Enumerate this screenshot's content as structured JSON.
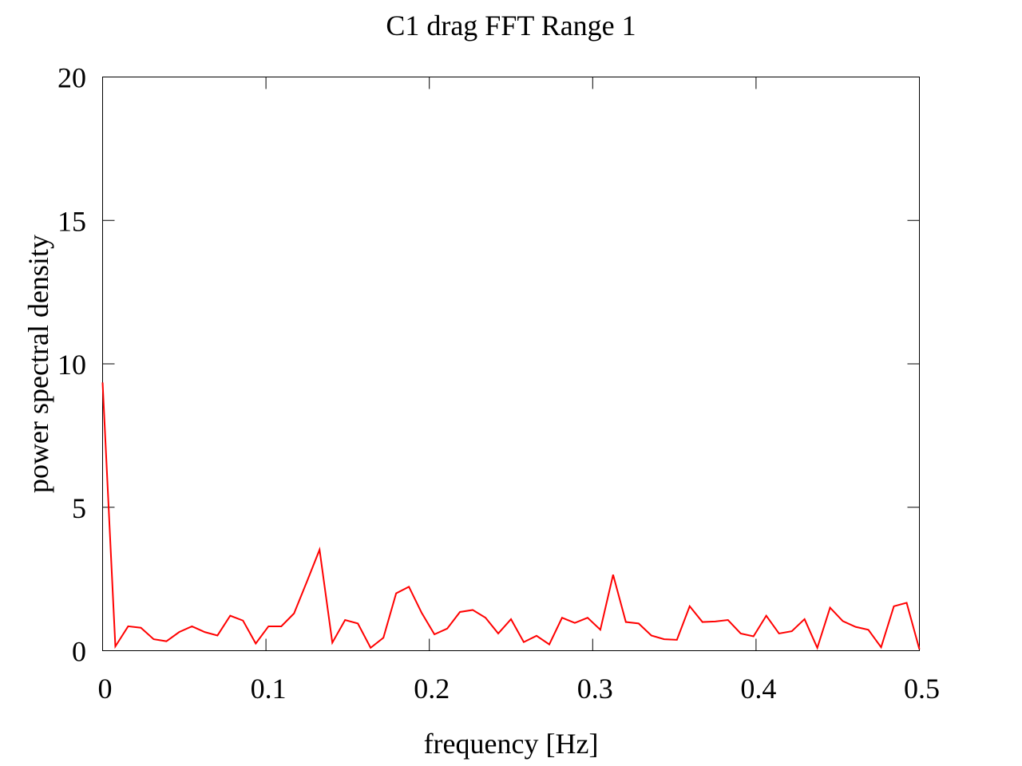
{
  "chart_data": {
    "type": "line",
    "title": "C1 drag FFT Range 1",
    "xlabel": "frequency [Hz]",
    "ylabel": "power spectral density",
    "xlim": [
      0,
      0.5
    ],
    "ylim": [
      0,
      20
    ],
    "xticks": [
      0,
      0.1,
      0.2,
      0.3,
      0.4,
      0.5
    ],
    "xtick_labels": [
      "0",
      "0.1",
      "0.2",
      "0.3",
      "0.4",
      "0.5"
    ],
    "yticks": [
      0,
      5,
      10,
      15,
      20
    ],
    "ytick_labels": [
      "0",
      "5",
      "10",
      "15",
      "20"
    ],
    "grid": false,
    "series": [
      {
        "color": "#ff0000",
        "x": [
          0,
          0.00781,
          0.01563,
          0.02344,
          0.03125,
          0.03906,
          0.04688,
          0.05469,
          0.0625,
          0.07031,
          0.07813,
          0.08594,
          0.09375,
          0.10156,
          0.10938,
          0.11719,
          0.125,
          0.13281,
          0.14063,
          0.14844,
          0.15625,
          0.16406,
          0.17188,
          0.17969,
          0.1875,
          0.19531,
          0.20313,
          0.21094,
          0.21875,
          0.22656,
          0.23438,
          0.24219,
          0.25,
          0.25781,
          0.26563,
          0.27344,
          0.28125,
          0.28906,
          0.29688,
          0.30469,
          0.3125,
          0.32031,
          0.32813,
          0.33594,
          0.34375,
          0.35156,
          0.35938,
          0.36719,
          0.375,
          0.38281,
          0.39063,
          0.39844,
          0.40625,
          0.41406,
          0.42188,
          0.42969,
          0.4375,
          0.44531,
          0.45313,
          0.46094,
          0.46875,
          0.47656,
          0.48438,
          0.49219,
          0.5
        ],
        "y": [
          9.35,
          0.15,
          0.85,
          0.8,
          0.4,
          0.33,
          0.65,
          0.85,
          0.65,
          0.53,
          1.22,
          1.05,
          0.25,
          0.85,
          0.85,
          1.3,
          2.4,
          3.52,
          0.28,
          1.07,
          0.95,
          0.1,
          0.45,
          2.0,
          2.23,
          1.32,
          0.57,
          0.77,
          1.35,
          1.42,
          1.15,
          0.6,
          1.1,
          0.3,
          0.52,
          0.22,
          1.15,
          0.97,
          1.15,
          0.73,
          2.65,
          1.0,
          0.95,
          0.53,
          0.4,
          0.38,
          1.55,
          1.0,
          1.02,
          1.07,
          0.6,
          0.5,
          1.22,
          0.6,
          0.68,
          1.1,
          0.1,
          1.5,
          1.03,
          0.83,
          0.73,
          0.12,
          1.55,
          1.67,
          0.05
        ]
      }
    ]
  }
}
